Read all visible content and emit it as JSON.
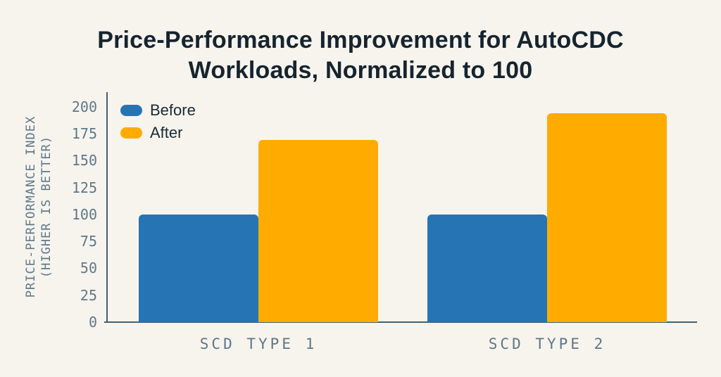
{
  "chart_data": {
    "type": "bar",
    "title": "Price-Performance Improvement for AutoCDC Workloads, Normalized to 100",
    "title_lines": [
      "Price-Performance Improvement for AutoCDC",
      "Workloads, Normalized to 100"
    ],
    "ylabel": "PRICE-PERFORMANCE INDEX (HIGHER IS BETTER)",
    "ylabel_lines": [
      "PRICE-PERFORMANCE INDEX",
      "(HIGHER IS BETTER)"
    ],
    "xlabel": "",
    "categories": [
      "SCD TYPE 1",
      "SCD TYPE 2"
    ],
    "series": [
      {
        "name": "Before",
        "values": [
          100,
          100
        ],
        "color": "#2674b4"
      },
      {
        "name": "After",
        "values": [
          169,
          194
        ],
        "color": "#ffab00"
      }
    ],
    "yticks": [
      "200",
      "175",
      "150",
      "125",
      "100",
      "75",
      "50",
      "25",
      "0"
    ],
    "ylim": [
      0,
      200
    ],
    "grid": false,
    "legend_position": "top-left",
    "colors": {
      "background": "#f7f4ee",
      "title_text": "#16242e",
      "axis_text": "#5e7787",
      "axis_line": "#45606d",
      "before_bar": "#2674b4",
      "after_bar": "#ffab00"
    }
  }
}
